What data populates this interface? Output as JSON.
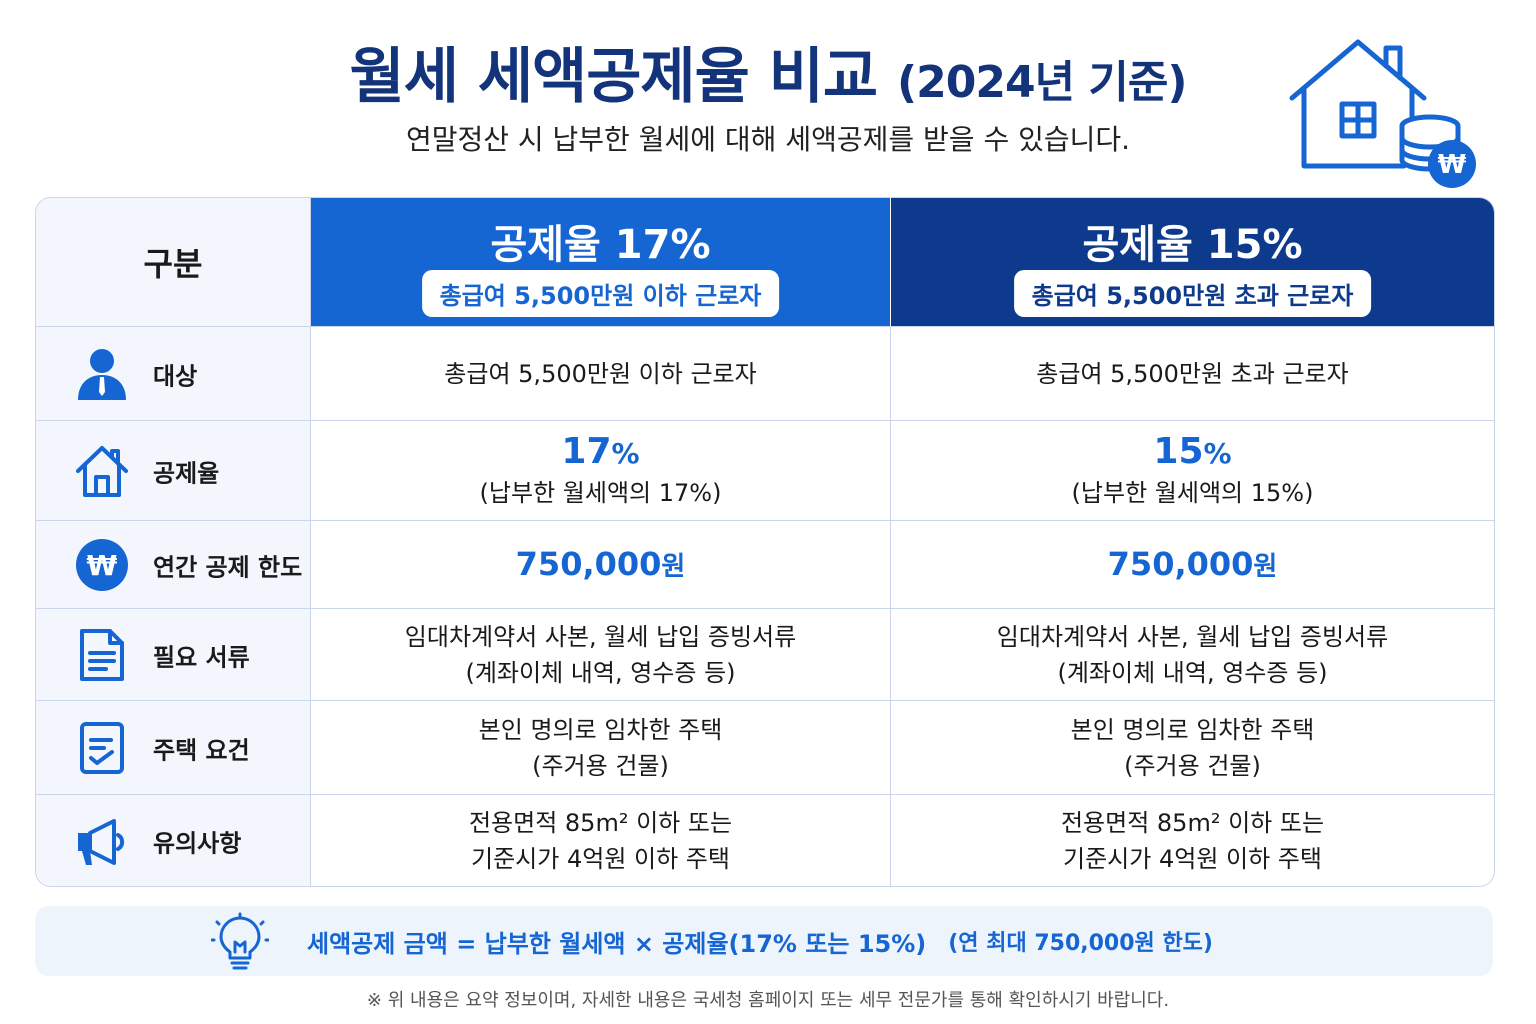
{
  "title": {
    "main": "월세 세액공제율 비교",
    "sub": "(2024년 기준)"
  },
  "subtitle": "연말정산 시 납부한 월세에 대해 세액공제를 받을 수 있습니다.",
  "illustration": {
    "currency_symbol": "₩",
    "icon": "house-coins-icon"
  },
  "table": {
    "header_label": "구분",
    "col1": {
      "rate": "공제율 17%",
      "target": "총급여 5,500만원 이하 근로자",
      "color": "#1565d3"
    },
    "col2": {
      "rate": "공제율 15%",
      "target": "총급여 5,500만원 초과 근로자",
      "color": "#0e3a8e"
    },
    "rows": {
      "target": {
        "label": "대상",
        "icon": "person-icon",
        "col1": "총급여 5,500만원 이하 근로자",
        "col2": "총급여 5,500만원 초과 근로자"
      },
      "rate": {
        "label": "공제율",
        "icon": "home-icon",
        "col1_value": "17",
        "col2_value": "15",
        "unit": "%",
        "col1_note": "(납부한 월세액의 17%)",
        "col2_note": "(납부한 월세액의 15%)"
      },
      "limit": {
        "label": "연간 공제 한도",
        "icon": "won-coin-icon",
        "symbol": "₩",
        "col1_value": "750,000",
        "col2_value": "750,000",
        "unit": "원"
      },
      "docs": {
        "label": "필요 서류",
        "icon": "document-icon",
        "col1_line1": "임대차계약서 사본, 월세 납입 증빙서류",
        "col1_line2": "(계좌이체 내역, 영수증 등)",
        "col2_line1": "임대차계약서 사본, 월세 납입 증빙서류",
        "col2_line2": "(계좌이체 내역, 영수증 등)"
      },
      "housing": {
        "label": "주택 요건",
        "icon": "checklist-icon",
        "col1_line1": "본인 명의로 임차한 주택",
        "col1_line2": "(주거용 건물)",
        "col2_line1": "본인 명의로 임차한 주택",
        "col2_line2": "(주거용 건물)"
      },
      "notes": {
        "label": "유의사항",
        "icon": "megaphone-icon",
        "col1_line1": "전용면적 85m² 이하 또는",
        "col1_line2": "기준시가 4억원 이하 주택",
        "col2_line1": "전용면적 85m² 이하 또는",
        "col2_line2": "기준시가 4억원 이하 주택"
      }
    }
  },
  "formula": {
    "icon": "lightbulb-icon",
    "text": "세액공제 금액 = 납부한 월세액 × 공제율(17% 또는 15%)",
    "note": "(연 최대 750,000원 한도)"
  },
  "footnote": "※ 위 내용은 요약 정보이며, 자세한 내용은 국세청 홈페이지 또는 세무 전문가를 통해 확인하시기 바랍니다.",
  "colors": {
    "title": "#13337a",
    "accent": "#1565d3",
    "dark": "#0e3a8e",
    "label_bg": "#f3f7fd"
  }
}
